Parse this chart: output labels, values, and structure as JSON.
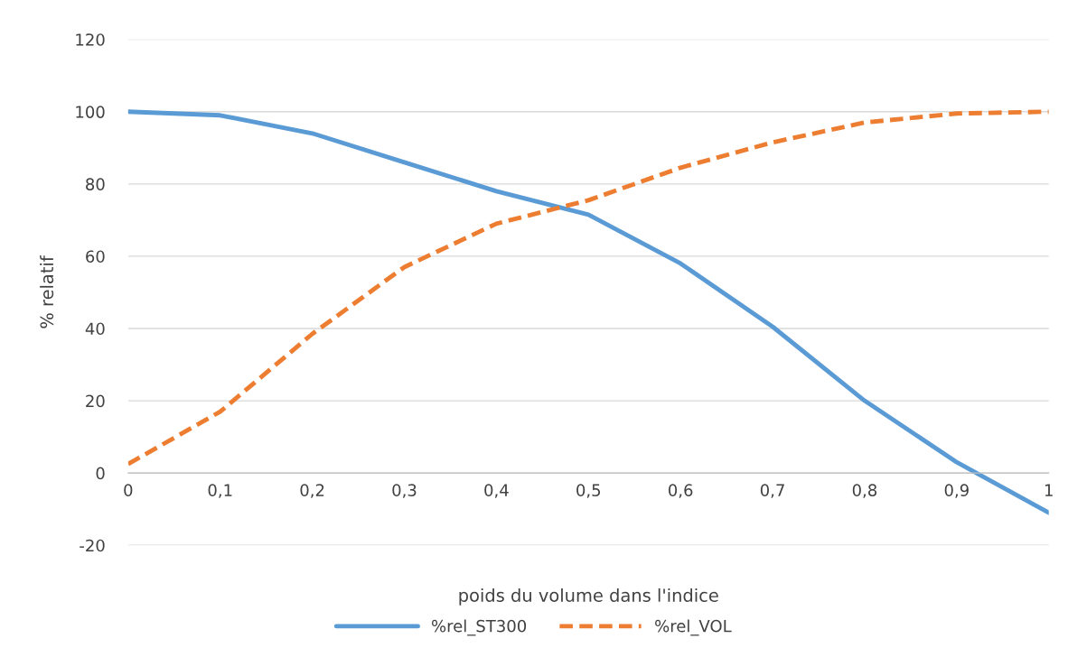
{
  "chart_data": {
    "type": "line",
    "xlabel": "poids du volume dans l'indice",
    "ylabel": "% relatif",
    "x": [
      0,
      0.1,
      0.2,
      0.3,
      0.4,
      0.5,
      0.6,
      0.7,
      0.8,
      0.9,
      1
    ],
    "series": [
      {
        "name": "%rel_ST300",
        "color": "#5b9bd5",
        "line_style": "solid",
        "values": [
          100,
          99,
          94,
          86,
          78,
          71.5,
          58,
          40.5,
          20,
          3,
          -11
        ]
      },
      {
        "name": "%rel_VOL",
        "color": "#ed7d31",
        "line_style": "dashed",
        "values": [
          2.5,
          17,
          38.5,
          57,
          69,
          75.5,
          84.5,
          91.5,
          97,
          99.5,
          100
        ]
      }
    ],
    "xlim": [
      0,
      1
    ],
    "xticks": [
      0,
      {
        "value": 0.1,
        "label": "0,1"
      },
      {
        "value": 0.2,
        "label": "0,2"
      },
      {
        "value": 0.3,
        "label": "0,3"
      },
      {
        "value": 0.4,
        "label": "0,4"
      },
      {
        "value": 0.5,
        "label": "0,5"
      },
      {
        "value": 0.6,
        "label": "0,6"
      },
      {
        "value": 0.7,
        "label": "0,7"
      },
      {
        "value": 0.8,
        "label": "0,8"
      },
      {
        "value": 0.9,
        "label": "0,9"
      },
      1
    ],
    "ylim": [
      -20,
      120
    ],
    "yticks": [
      -20,
      0,
      20,
      40,
      60,
      80,
      100,
      120
    ],
    "grid": "y",
    "legend": "bottom",
    "marker": "none"
  }
}
